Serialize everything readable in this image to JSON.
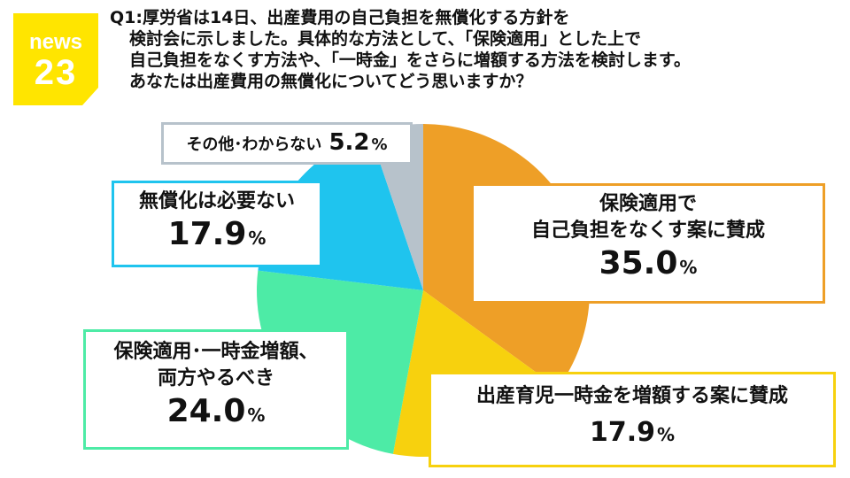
{
  "logo": {
    "line1": "news",
    "line2": "23",
    "color": "#FFE500"
  },
  "question": {
    "lines": [
      "Q1:厚労省は14日、出産費用の自己負担を無償化する方針を",
      "検討会に示しました。具体的な方法として、「保険適用」とした上で",
      "自己負担をなくす方法や、「一時金」をさらに増額する方法を検討します。",
      "あなたは出産費用の無償化についてどう思いますか？"
    ]
  },
  "chart_data": {
    "type": "pie",
    "slices": [
      {
        "label": "保険適用で自己負担をなくす案に賛成",
        "label_lines": [
          "保険適用で",
          "自己負担をなくす案に賛成"
        ],
        "value": 35.0,
        "value_text": "35.0",
        "color": "#EE9F27"
      },
      {
        "label": "出産育児一時金を増額する案に賛成",
        "label_lines": [
          "出産育児一時金を増額する案に賛成"
        ],
        "value": 17.9,
        "value_text": "17.9",
        "color": "#F7D10E"
      },
      {
        "label": "保険適用・一時金増額、両方やるべき",
        "label_lines": [
          "保険適用･一時金増額、",
          "両方やるべき"
        ],
        "value": 24.0,
        "value_text": "24.0",
        "color": "#4DEBA6"
      },
      {
        "label": "無償化は必要ない",
        "label_lines": [
          "無償化は必要ない"
        ],
        "value": 17.9,
        "value_text": "17.9",
        "color": "#1FC4EE"
      },
      {
        "label": "その他・わからない",
        "label_lines": [
          "その他･わからない"
        ],
        "value": 5.2,
        "value_text": "5.2",
        "color": "#B7C2CB"
      }
    ],
    "unit": "%",
    "start": "12 o'clock",
    "direction": "clockwise"
  }
}
